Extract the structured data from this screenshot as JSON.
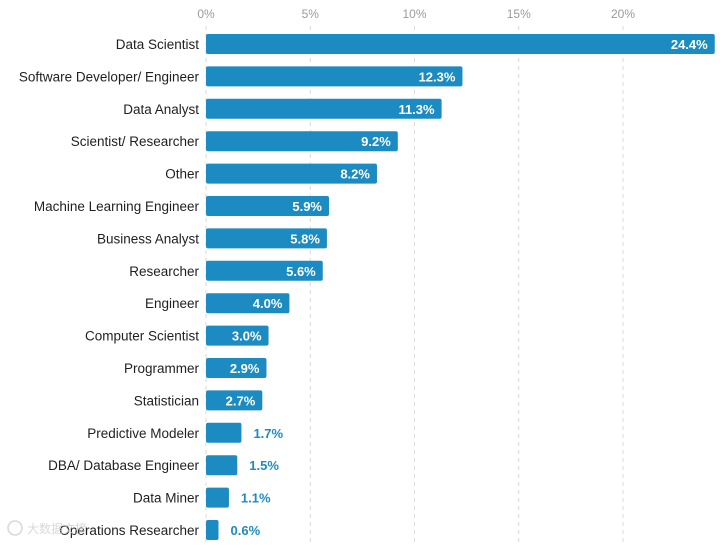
{
  "chart_data": {
    "type": "bar",
    "orientation": "horizontal",
    "title": "",
    "xlabel": "",
    "ylabel": "",
    "xlim": [
      0,
      25
    ],
    "grid": true,
    "x_ticks": [
      0,
      5,
      10,
      15,
      20
    ],
    "x_tick_labels": [
      "0%",
      "5%",
      "10%",
      "15%",
      "20%"
    ],
    "categories": [
      "Data Scientist",
      "Software Developer/ Engineer",
      "Data Analyst",
      "Scientist/ Researcher",
      "Other",
      "Machine Learning Engineer",
      "Business Analyst",
      "Researcher",
      "Engineer",
      "Computer Scientist",
      "Programmer",
      "Statistician",
      "Predictive Modeler",
      "DBA/ Database Engineer",
      "Data Miner",
      "Operations Researcher"
    ],
    "values": [
      24.4,
      12.3,
      11.3,
      9.2,
      8.2,
      5.9,
      5.8,
      5.6,
      4.0,
      3.0,
      2.9,
      2.7,
      1.7,
      1.5,
      1.1,
      0.6
    ],
    "value_labels": [
      "24.4%",
      "12.3%",
      "11.3%",
      "9.2%",
      "8.2%",
      "5.9%",
      "5.8%",
      "5.6%",
      "4.0%",
      "3.0%",
      "2.9%",
      "2.7%",
      "1.7%",
      "1.5%",
      "1.1%",
      "0.6%"
    ],
    "colors": {
      "bar": "#1b8bc2",
      "label_inside": "#ffffff",
      "label_outside": "#1b8bc2"
    }
  },
  "watermark": {
    "icon": "logo-icon",
    "text": "大数据文摘"
  }
}
